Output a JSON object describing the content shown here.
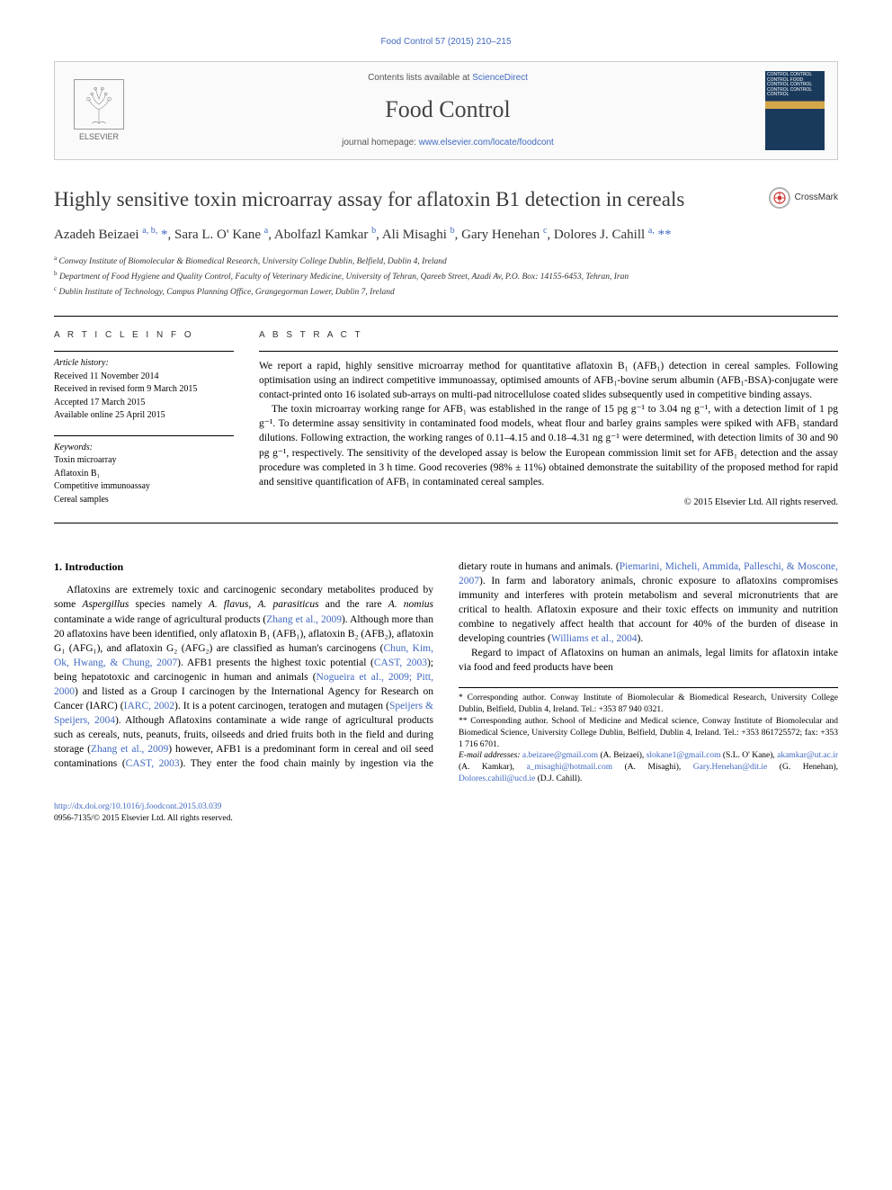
{
  "citation": "Food Control 57 (2015) 210–215",
  "header": {
    "contents_prefix": "Contents lists available at ",
    "contents_link": "ScienceDirect",
    "journal": "Food Control",
    "homepage_prefix": "journal homepage: ",
    "homepage_url": "www.elsevier.com/locate/foodcont",
    "publisher": "ELSEVIER",
    "cover_lines": "CONTROL CONTROL CONTROL FOOD CONTROL CONTROL CONTROL CONTROL CONTROL"
  },
  "crossmark_label": "CrossMark",
  "title": "Highly sensitive toxin microarray assay for aflatoxin B1 detection in cereals",
  "authors_html": "Azadeh Beizaei <sup>a, b,</sup> <span class='ast'>*</span>, Sara L. O' Kane <sup>a</sup>, Abolfazl Kamkar <sup>b</sup>, Ali Misaghi <sup>b</sup>, Gary Henehan <sup>c</sup>, Dolores J. Cahill <sup>a,</sup> <span class='ast'>**</span>",
  "affiliations": {
    "a": "Conway Institute of Biomolecular & Biomedical Research, University College Dublin, Belfield, Dublin 4, Ireland",
    "b": "Department of Food Hygiene and Quality Control, Faculty of Veterinary Medicine, University of Tehran, Qareeb Street, Azadi Av, P.O. Box: 14155-6453, Tehran, Iran",
    "c": "Dublin Institute of Technology, Campus Planning Office, Grangegorman Lower, Dublin 7, Ireland"
  },
  "article_info_label": "A R T I C L E  I N F O",
  "abstract_label": "A B S T R A C T",
  "history": {
    "label": "Article history:",
    "received": "Received 11 November 2014",
    "revised": "Received in revised form 9 March 2015",
    "accepted": "Accepted 17 March 2015",
    "online": "Available online 25 April 2015"
  },
  "keywords": {
    "label": "Keywords:",
    "items": [
      "Toxin microarray",
      "Aflatoxin B₁",
      "Competitive immunoassay",
      "Cereal samples"
    ]
  },
  "abstract": {
    "p1": "We report a rapid, highly sensitive microarray method for quantitative aflatoxin B₁ (AFB₁) detection in cereal samples. Following optimisation using an indirect competitive immunoassay, optimised amounts of AFB₁-bovine serum albumin (AFB₁-BSA)-conjugate were contact-printed onto 16 isolated sub-arrays on multi-pad nitrocellulose coated slides subsequently used in competitive binding assays.",
    "p2": "The toxin microarray working range for AFB₁ was established in the range of 15 pg g⁻¹ to 3.04 ng g⁻¹, with a detection limit of 1 pg g⁻¹. To determine assay sensitivity in contaminated food models, wheat flour and barley grains samples were spiked with AFB₁ standard dilutions. Following extraction, the working ranges of 0.11–4.15 and 0.18–4.31 ng g⁻¹ were determined, with detection limits of 30 and 90 pg g⁻¹, respectively. The sensitivity of the developed assay is below the European commission limit set for AFB₁ detection and the assay procedure was completed in 3 h time. Good recoveries (98% ± 11%) obtained demonstrate the suitability of the proposed method for rapid and sensitive quantification of AFB₁ in contaminated cereal samples.",
    "copyright": "© 2015 Elsevier Ltd. All rights reserved."
  },
  "intro": {
    "heading": "1. Introduction",
    "col1_p1_pre": "Aflatoxins are extremely toxic and carcinogenic secondary metabolites produced by some ",
    "col1_p1_em1": "Aspergillus",
    "col1_p1_mid1": " species namely ",
    "col1_p1_em2": "A. flavus",
    "col1_p1_mid2": ", ",
    "col1_p1_em3": "A. parasiticus",
    "col1_p1_mid3": " and the rare ",
    "col1_p1_em4": "A. nomius",
    "col1_p1_mid4": " contaminate a wide range of agricultural products (",
    "col1_p1_link1": "Zhang et al., 2009",
    "col1_p1_mid5": "). Although more than 20 aflatoxins have been identified, only aflatoxin B₁ (AFB₁), aflatoxin B₂ (AFB₂), aflatoxin G₁ (AFG₁), and aflatoxin G₂ (AFG₂) are classified as human's carcinogens (",
    "col1_p1_link2": "Chun, Kim, Ok, Hwang, & Chung, 2007",
    "col1_p1_mid6": "). AFB1 presents the highest toxic potential (",
    "col1_p1_link3": "CAST, 2003",
    "col1_p1_mid7": "); being",
    "col2_p1_pre": "hepatotoxic and carcinogenic in human and animals (",
    "col2_p1_link1": "Nogueira et al., 2009; Pitt, 2000",
    "col2_p1_mid1": ") and listed as a Group I carcinogen by the International Agency for Research on Cancer (IARC) (",
    "col2_p1_link2": "IARC, 2002",
    "col2_p1_mid2": "). It is a potent carcinogen, teratogen and mutagen (",
    "col2_p1_link3": "Speijers & Speijers, 2004",
    "col2_p1_mid3": "). Although Aflatoxins contaminate a wide range of agricultural products such as cereals, nuts, peanuts, fruits, oilseeds and dried fruits both in the field and during storage (",
    "col2_p1_link4": "Zhang et al., 2009",
    "col2_p1_mid4": ") however, AFB1 is a predominant form in cereal and oil seed contaminations (",
    "col2_p1_link5": "CAST, 2003",
    "col2_p1_mid5": "). They enter the food chain mainly by ingestion via the dietary route in humans and animals. (",
    "col2_p1_link6": "Piemarini, Micheli, Ammida, Palleschi, & Moscone, 2007",
    "col2_p1_mid6": "). In farm and laboratory animals, chronic exposure to aflatoxins compromises immunity and interferes with protein metabolism and several micronutrients that are critical to health. Aflatoxin exposure and their toxic effects on immunity and nutrition combine to negatively affect health that account for 40% of the burden of disease in developing countries (",
    "col2_p1_link7": "Williams et al., 2004",
    "col2_p1_end": ").",
    "col2_p2": "Regard to impact of Aflatoxins on human an animals, legal limits for aflatoxin intake via food and feed products have been"
  },
  "footnotes": {
    "c1": "* Corresponding author. Conway Institute of Biomolecular & Biomedical Research, University College Dublin, Belfield, Dublin 4, Ireland. Tel.: +353 87 940 0321.",
    "c2": "** Corresponding author. School of Medicine and Medical science, Conway Institute of Biomolecular and Biomedical Science, University College Dublin, Belfield, Dublin 4, Ireland. Tel.: +353 861725572; fax: +353 1 716 6701.",
    "emails_label": "E-mail addresses:",
    "emails": [
      {
        "addr": "a.beizaee@gmail.com",
        "who": "(A. Beizaei)"
      },
      {
        "addr": "slokane1@gmail.com",
        "who": "(S.L. O' Kane)"
      },
      {
        "addr": "akamkar@ut.ac.ir",
        "who": "(A. Kamkar)"
      },
      {
        "addr": "a_misaghi@hotmail.com",
        "who": "(A. Misaghi)"
      },
      {
        "addr": "Gary.Henehan@dit.ie",
        "who": "(G. Henehan)"
      },
      {
        "addr": "Dolores.cahill@ucd.ie",
        "who": "(D.J. Cahill)"
      }
    ]
  },
  "doi": {
    "url": "http://dx.doi.org/10.1016/j.foodcont.2015.03.039",
    "issn_line": "0956-7135/© 2015 Elsevier Ltd. All rights reserved."
  },
  "colors": {
    "link": "#4169c0",
    "text": "#000000",
    "heading": "#3a3a3a",
    "border": "#000000",
    "box_border": "#cccccc",
    "cover_dark": "#1a3a5c",
    "cover_band": "#d4a74a"
  },
  "typography": {
    "title_pt": 23,
    "authors_pt": 15,
    "body_pt": 11.5,
    "small_pt": 10,
    "footnote_pt": 9.5,
    "journal_pt": 26
  }
}
